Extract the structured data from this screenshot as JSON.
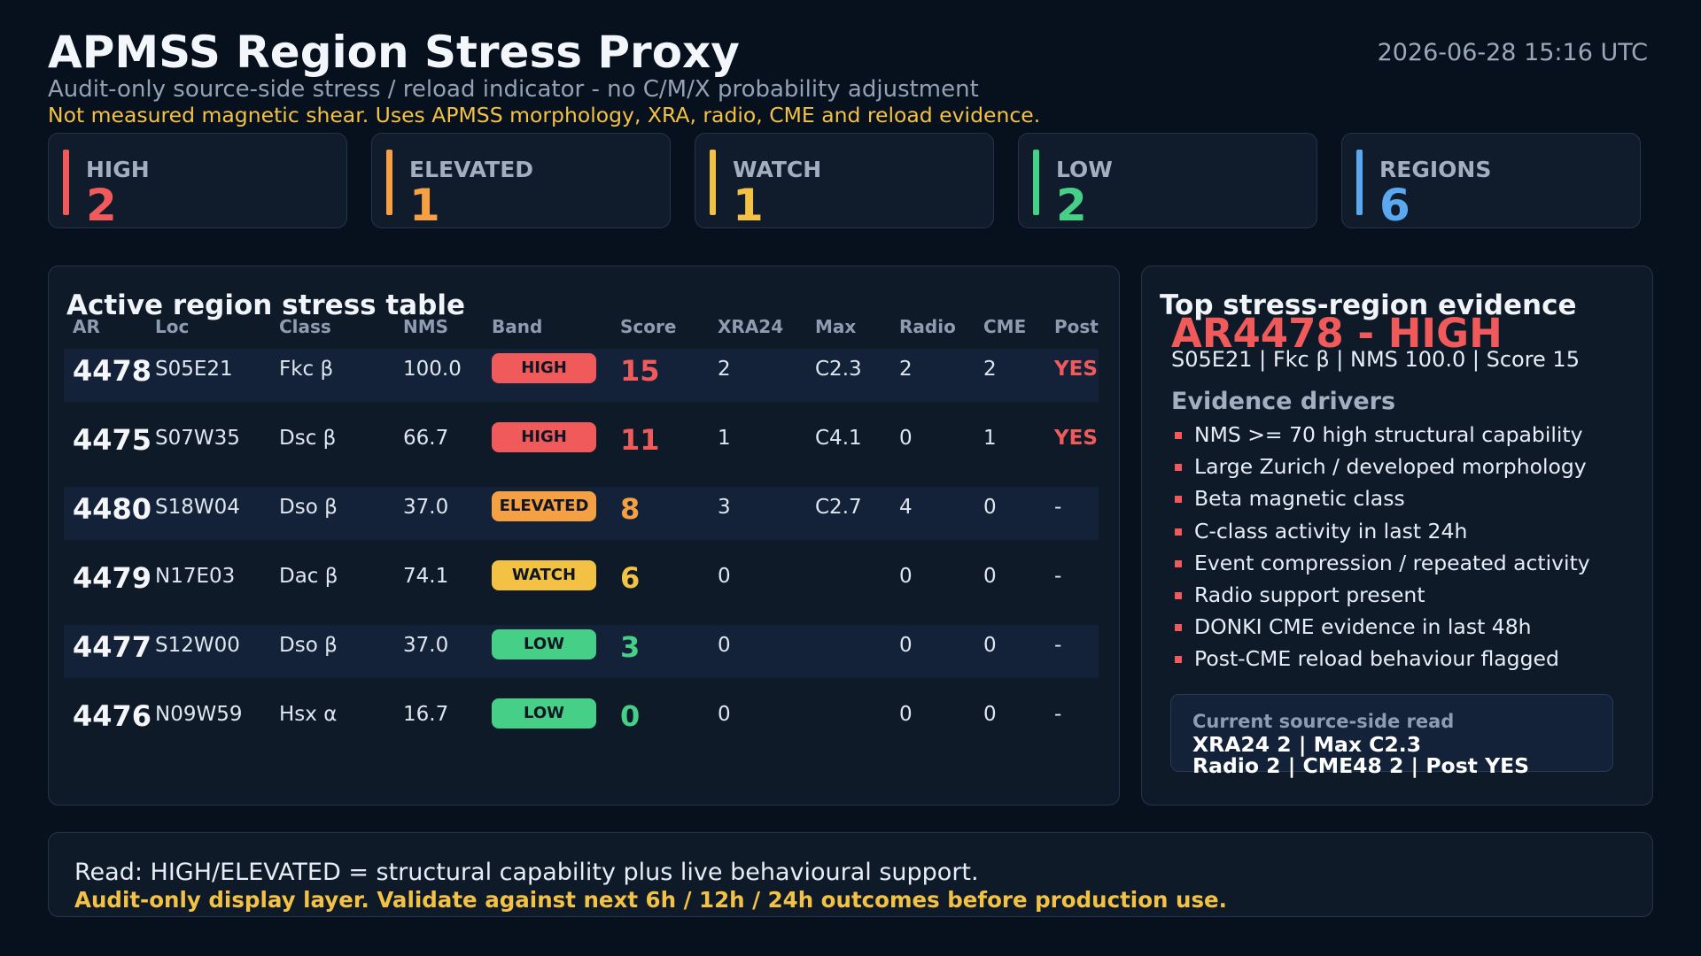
{
  "header": {
    "title": "APMSS Region Stress Proxy",
    "timestamp": "2026-06-28 15:16 UTC",
    "subtitle": "Audit-only source-side stress / reload indicator - no C/M/X probability adjustment",
    "warning": "Not measured magnetic shear. Uses APMSS morphology, XRA, radio, CME and reload evidence."
  },
  "summary_cards": [
    {
      "label": "HIGH",
      "value": "2",
      "color": "#f05a5a"
    },
    {
      "label": "ELEVATED",
      "value": "1",
      "color": "#f5a043"
    },
    {
      "label": "WATCH",
      "value": "1",
      "color": "#f3c244"
    },
    {
      "label": "LOW",
      "value": "2",
      "color": "#46cf86"
    },
    {
      "label": "REGIONS",
      "value": "6",
      "color": "#5aa9f0"
    }
  ],
  "table": {
    "title": "Active region stress table",
    "columns": [
      "AR",
      "Loc",
      "Class",
      "NMS",
      "Band",
      "Score",
      "XRA24",
      "Max",
      "Radio",
      "CME",
      "Post"
    ],
    "rows": [
      {
        "ar": "4478",
        "loc": "S05E21",
        "cls": "Fkc β",
        "nms": "100.0",
        "band": "HIGH",
        "band_color": "#f05a5a",
        "score": "15",
        "xra24": "2",
        "max": "C2.3",
        "radio": "2",
        "cme": "2",
        "post": "YES"
      },
      {
        "ar": "4475",
        "loc": "S07W35",
        "cls": "Dsc β",
        "nms": "66.7",
        "band": "HIGH",
        "band_color": "#f05a5a",
        "score": "11",
        "xra24": "1",
        "max": "C4.1",
        "radio": "0",
        "cme": "1",
        "post": "YES"
      },
      {
        "ar": "4480",
        "loc": "S18W04",
        "cls": "Dso β",
        "nms": "37.0",
        "band": "ELEVATED",
        "band_color": "#f5a043",
        "score": "8",
        "xra24": "3",
        "max": "C2.7",
        "radio": "4",
        "cme": "0",
        "post": "-"
      },
      {
        "ar": "4479",
        "loc": "N17E03",
        "cls": "Dac β",
        "nms": "74.1",
        "band": "WATCH",
        "band_color": "#f3c244",
        "score": "6",
        "xra24": "0",
        "max": "",
        "radio": "0",
        "cme": "0",
        "post": "-"
      },
      {
        "ar": "4477",
        "loc": "S12W00",
        "cls": "Dso β",
        "nms": "37.0",
        "band": "LOW",
        "band_color": "#46cf86",
        "score": "3",
        "xra24": "0",
        "max": "",
        "radio": "0",
        "cme": "0",
        "post": "-"
      },
      {
        "ar": "4476",
        "loc": "N09W59",
        "cls": "Hsx α",
        "nms": "16.7",
        "band": "LOW",
        "band_color": "#46cf86",
        "score": "0",
        "xra24": "0",
        "max": "",
        "radio": "0",
        "cme": "0",
        "post": "-"
      }
    ]
  },
  "evidence": {
    "title": "Top stress-region evidence",
    "headline": "AR4478 - HIGH",
    "summary": "S05E21 | Fkc β | NMS 100.0 | Score 15",
    "drivers_title": "Evidence drivers",
    "drivers": [
      "NMS >= 70 high structural capability",
      "Large Zurich / developed morphology",
      "Beta magnetic class",
      "C-class activity in last 24h",
      "Event compression / repeated activity",
      "Radio support present",
      "DONKI CME evidence in last 48h",
      "Post-CME reload behaviour flagged"
    ],
    "read_title": "Current source-side read",
    "read_line1": "XRA24 2 | Max C2.3",
    "read_line2": "Radio 2 | CME48 2 | Post YES"
  },
  "footer": {
    "line1": "Read: HIGH/ELEVATED = structural capability plus live behavioural support.",
    "line2": "Audit-only display layer. Validate against next 6h / 12h / 24h outcomes before production use."
  }
}
